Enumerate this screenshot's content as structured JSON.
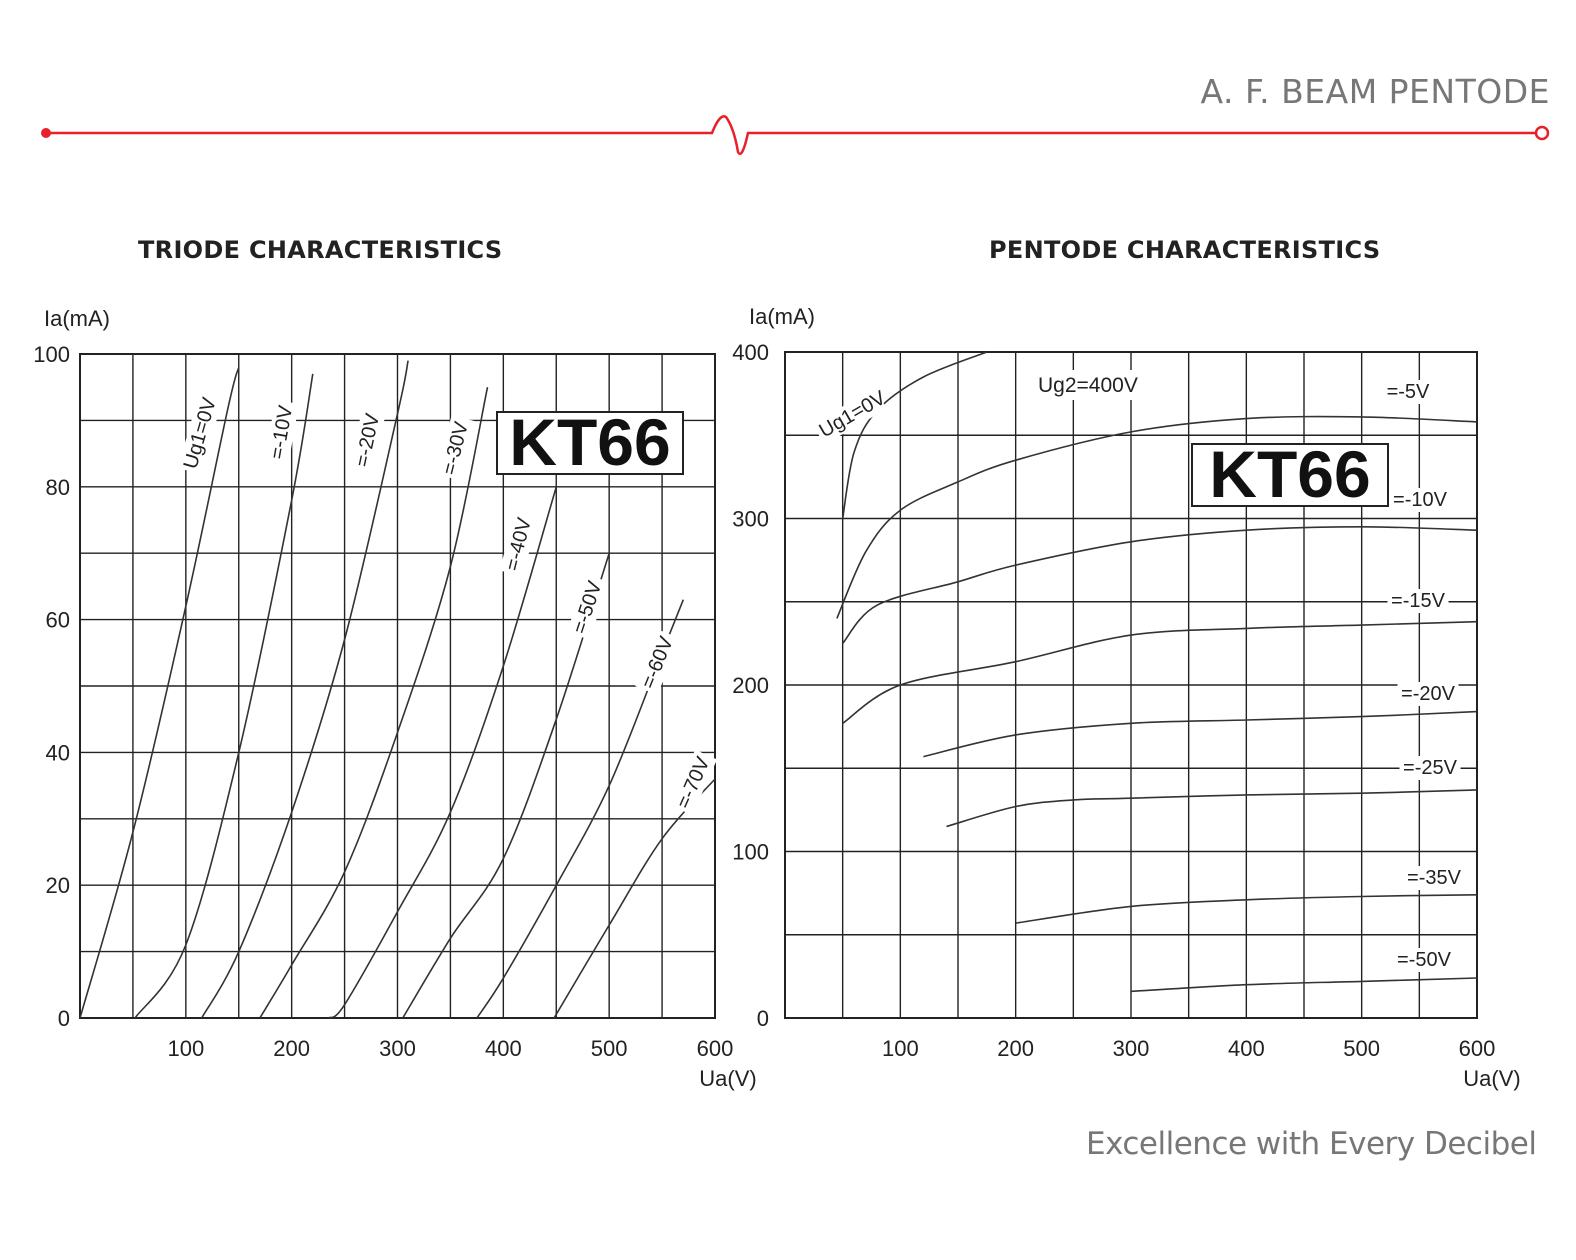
{
  "header": {
    "title": "A. F. BEAM PENTODE",
    "accent_color": "#e8202a"
  },
  "footer": {
    "tagline": "Excellence with Every Decibel"
  },
  "chart_data": [
    {
      "type": "line",
      "title": "TRIODE CHARACTERISTICS",
      "badge": "KT66",
      "xlabel": "Ua(V)",
      "ylabel": "Ia(mA)",
      "xlim": [
        0,
        600
      ],
      "ylim": [
        0,
        100
      ],
      "x_ticks": [
        100,
        200,
        300,
        400,
        500,
        600
      ],
      "y_ticks": [
        0,
        20,
        40,
        60,
        80,
        100
      ],
      "grid": true,
      "series": [
        {
          "name": "Ug1=0V",
          "points": [
            [
              0,
              0
            ],
            [
              50,
              28
            ],
            [
              100,
              62
            ],
            [
              140,
              92
            ],
            [
              150,
              98
            ]
          ]
        },
        {
          "name": "=-10V",
          "points": [
            [
              52,
              0
            ],
            [
              100,
              11
            ],
            [
              150,
              40
            ],
            [
              200,
              78
            ],
            [
              220,
              97
            ]
          ]
        },
        {
          "name": "=-20V",
          "points": [
            [
              115,
              0
            ],
            [
              150,
              10
            ],
            [
              200,
              31
            ],
            [
              250,
              57
            ],
            [
              300,
              91
            ],
            [
              310,
              99
            ]
          ]
        },
        {
          "name": "=-30V",
          "points": [
            [
              170,
              0
            ],
            [
              200,
              8
            ],
            [
              250,
              22
            ],
            [
              300,
              43
            ],
            [
              350,
              68
            ],
            [
              385,
              95
            ]
          ]
        },
        {
          "name": "=-40V",
          "points": [
            [
              235,
              0
            ],
            [
              250,
              2
            ],
            [
              300,
              16
            ],
            [
              350,
              31
            ],
            [
              400,
              53
            ],
            [
              450,
              80
            ]
          ]
        },
        {
          "name": "=-50V",
          "points": [
            [
              305,
              0
            ],
            [
              350,
              12
            ],
            [
              400,
              24
            ],
            [
              450,
              45
            ],
            [
              500,
              70
            ]
          ]
        },
        {
          "name": "=-60V",
          "points": [
            [
              375,
              0
            ],
            [
              400,
              6
            ],
            [
              450,
              20
            ],
            [
              500,
              35
            ],
            [
              550,
              55
            ],
            [
              570,
              63
            ]
          ]
        },
        {
          "name": "=-70V",
          "points": [
            [
              448,
              0
            ],
            [
              500,
              14
            ],
            [
              550,
              27
            ],
            [
              600,
              36
            ]
          ]
        }
      ]
    },
    {
      "type": "line",
      "title": "PENTODE CHARACTERISTICS",
      "badge": "KT66",
      "xlabel": "Ua(V)",
      "ylabel": "Ia(mA)",
      "xlim": [
        0,
        600
      ],
      "ylim": [
        0,
        400
      ],
      "x_ticks": [
        100,
        200,
        300,
        400,
        500,
        600
      ],
      "y_ticks": [
        0,
        100,
        200,
        300,
        400
      ],
      "grid": true,
      "annotation": "Ug2=400V",
      "series": [
        {
          "name": "Ug1=0V",
          "points": [
            [
              50,
              300
            ],
            [
              60,
              340
            ],
            [
              80,
              365
            ],
            [
              120,
              385
            ],
            [
              175,
              400
            ]
          ]
        },
        {
          "name": "=-5V",
          "points": [
            [
              45,
              240
            ],
            [
              70,
              280
            ],
            [
              100,
              305
            ],
            [
              150,
              322
            ],
            [
              200,
              335
            ],
            [
              300,
              352
            ],
            [
              400,
              360
            ],
            [
              500,
              361
            ],
            [
              600,
              358
            ]
          ]
        },
        {
          "name": "=-10V",
          "points": [
            [
              50,
              225
            ],
            [
              80,
              248
            ],
            [
              150,
              262
            ],
            [
              200,
              272
            ],
            [
              300,
              286
            ],
            [
              400,
              293
            ],
            [
              500,
              295
            ],
            [
              600,
              293
            ]
          ]
        },
        {
          "name": "=-15V",
          "points": [
            [
              50,
              177
            ],
            [
              100,
              200
            ],
            [
              200,
              214
            ],
            [
              300,
              230
            ],
            [
              400,
              234
            ],
            [
              500,
              236
            ],
            [
              600,
              238
            ]
          ]
        },
        {
          "name": "=-20V",
          "points": [
            [
              120,
              157
            ],
            [
              200,
              170
            ],
            [
              300,
              177
            ],
            [
              400,
              179
            ],
            [
              500,
              181
            ],
            [
              600,
              184
            ]
          ]
        },
        {
          "name": "=-25V",
          "points": [
            [
              140,
              115
            ],
            [
              200,
              127
            ],
            [
              250,
              131
            ],
            [
              300,
              132
            ],
            [
              400,
              134
            ],
            [
              500,
              135
            ],
            [
              600,
              137
            ]
          ]
        },
        {
          "name": "=-35V",
          "points": [
            [
              200,
              57
            ],
            [
              300,
              67
            ],
            [
              400,
              71
            ],
            [
              500,
              73
            ],
            [
              600,
              74
            ]
          ]
        },
        {
          "name": "=-50V",
          "points": [
            [
              300,
              16
            ],
            [
              400,
              20
            ],
            [
              500,
              22
            ],
            [
              600,
              24
            ]
          ]
        }
      ]
    }
  ]
}
